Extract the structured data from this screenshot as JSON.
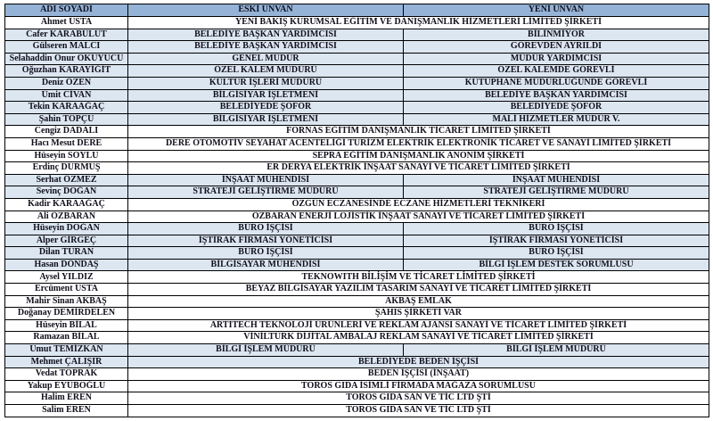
{
  "colors": {
    "header_bg": "#95b3d7",
    "shaded_row_bg": "#dce6f1",
    "plain_row_bg": "#ffffff",
    "border": "#000000",
    "text": "#10101c"
  },
  "table": {
    "columns": [
      "ADI SOYADI",
      "ESKİ UNVAN",
      "YENİ UNVAN"
    ],
    "rows": [
      {
        "name": "Ahmet USTA",
        "merged": "YENİ BAKIŞ KURUMSAL EĞİTİM VE DANIŞMANLIK HİZMETLERİ LİMİTED ŞİRKETİ",
        "shaded": false
      },
      {
        "name": "Cafer KARABULUT",
        "old_title": "BELEDİYE BAŞKAN YARDIMCISI",
        "new_title": "BİLİNMİYOR",
        "shaded": true
      },
      {
        "name": "Gülseren MALCI",
        "old_title": "BELEDİYE BAŞKAN YARDIMCISI",
        "new_title": "GÖREVDEN AYRILDI",
        "shaded": true
      },
      {
        "name": "Selahaddin Onur OKUYUCU",
        "old_title": "GENEL MÜDÜR",
        "new_title": "MÜDÜR YARDIMCISI",
        "shaded": true
      },
      {
        "name": "Oğuzhan KARAYİĞİT",
        "old_title": "ÖZEL KALEM MÜDÜRÜ",
        "new_title": "ÖZEL KALEMDE GÖREVLİ",
        "shaded": true
      },
      {
        "name": "Deniz ÖZEN",
        "old_title": "KÜLTÜR İŞLERİ MÜDÜRÜ",
        "new_title": "KÜTÜPHANE MÜDÜRLÜĞÜNDE GÖREVLİ",
        "shaded": true
      },
      {
        "name": "Ümit CİVAN",
        "old_title": "BİLGİSİYAR İŞLETMENİ",
        "new_title": "BELEDİYE BAŞKAN YARDIMCISI",
        "shaded": true
      },
      {
        "name": "Tekin KARAAĞAÇ",
        "old_title": "BELEDİYEDE ŞOFÖR",
        "new_title": "BELEDİYEDE ŞOFÖR",
        "shaded": true
      },
      {
        "name": "Şahin TOPÇU",
        "old_title": "BİLGİSİYAR İŞLETMENİ",
        "new_title": "MALİ HİZMETLER MÜDÜR V.",
        "shaded": true
      },
      {
        "name": "Cengiz DADALI",
        "merged": "FORNAS EĞİTİM DANIŞMANLIK TİCARET LİMİTED ŞİRKETİ",
        "shaded": false
      },
      {
        "name": "Hacı Mesut DERE",
        "merged": "DERE OTOMOTİV SEYAHAT ACENTELİĞİ TURİZM ELEKTRİK ELEKTRONİK TİCARET VE SANAYİ LİMİTED ŞİRKETİ",
        "shaded": false
      },
      {
        "name": "Hüseyin SOYLU",
        "merged": "SEPRA EĞİTİM DANIŞMANLIK ANONİM ŞİRKETİ",
        "shaded": false
      },
      {
        "name": "Erdinç DURMUŞ",
        "merged": "ER DERYA ELEKTRİK İNŞAAT SANAYİ VE TİCARET LİMİTED ŞİRKETİ",
        "shaded": false
      },
      {
        "name": "Serhat ÖZMEZ",
        "old_title": "İNŞAAT MÜHENDİSİ",
        "new_title": "İNŞAAT MÜHENDİSİ",
        "shaded": true
      },
      {
        "name": "Sevinç DOĞAN",
        "old_title": "STRATEJİ GELİŞTİRME MÜDÜRÜ",
        "new_title": "STRATEJİ GELİŞTİRME MÜDÜRÜ",
        "shaded": true
      },
      {
        "name": "Kadir KARAAĞAÇ",
        "merged": "ÖZGÜN ECZANESİNDE ECZANE HİZMETLERİ TEKNİKERİ",
        "shaded": false
      },
      {
        "name": "Ali ÖZBARAN",
        "merged": "ÖZBARAN ENERJİ LOJİSTİK İNŞAAT SANAYİ VE TİCARET LİMİTED ŞİRKETİ",
        "shaded": false
      },
      {
        "name": "Hüseyin DOĞAN",
        "old_title": "BÜRO İŞÇİSİ",
        "new_title": "BÜRO İŞÇİSİ",
        "shaded": true
      },
      {
        "name": "Alper GİRGEÇ",
        "old_title": "İŞTİRAK FİRMASI YÖNETİCİSİ",
        "new_title": "İŞTİRAK FİRMASI YÖNETİCİSİ",
        "shaded": true
      },
      {
        "name": "Dilan TURAN",
        "old_title": "BÜRO İŞÇİSİ",
        "new_title": "BÜRO İŞÇİSİ",
        "shaded": true
      },
      {
        "name": "Hasan DÖNDAŞ",
        "old_title": "BİLGİSAYAR MÜHENDİSİ",
        "new_title": "BİLGİ İŞLEM DESTEK SORUMLUSU",
        "shaded": true
      },
      {
        "name": "Aysel YILDIZ",
        "merged": "TEKNOWITH BİLİŞİM VE TİCARET LİMİTED ŞİRKETİ",
        "shaded": false
      },
      {
        "name": "Ercüment USTA",
        "merged": "BEYAZ BİLGİSAYAR YAZILIM TASARIM SANAYİ VE TİCARET LİMİTED ŞİRKETİ",
        "shaded": false
      },
      {
        "name": "Mahir Sinan AKBAŞ",
        "merged": "AKBAŞ EMLAK",
        "shaded": false
      },
      {
        "name": "Doğanay DEMİRDELEN",
        "merged": "ŞAHIS ŞİRKETİ VAR",
        "shaded": false
      },
      {
        "name": "Hüseyin BİLAL",
        "merged": "ARTITECH TEKNOLOJİ ÜRÜNLERİ VE REKLAM AJANSI SANAYİ VE TİCARET LİMİTED ŞİRKETİ",
        "shaded": false
      },
      {
        "name": "Ramazan BİLAL",
        "merged": "VİNİLTÜRK DİJİTAL AMBALAJ REKLAM SANAYİ VE TİCARET LİMİTED ŞİRKETİ",
        "shaded": false
      },
      {
        "name": "Umut TEMİZKAN",
        "old_title": "BİLGİ İŞLEM MÜDÜRÜ",
        "new_title": "BİLGİ İŞLEM MÜDÜRÜ",
        "shaded": true
      },
      {
        "name": "Mehmet ÇALIŞIR",
        "merged": "BELEDİYEDE BEDEN İŞÇİSİ",
        "shaded": true
      },
      {
        "name": "Vedat TOPRAK",
        "merged": "BEDEN İŞÇİSİ (İNŞAAT)",
        "shaded": false
      },
      {
        "name": "Yakup EYÜBOĞLU",
        "merged": "TOROS GIDA İSİMLİ FİRMADA MAĞAZA SORUMLUSU",
        "shaded": false
      },
      {
        "name": "Halim EREN",
        "merged": "TOROS GIDA SAN VE TİC LTD ŞTİ",
        "shaded": false
      },
      {
        "name": "Salim EREN",
        "merged": "TOROS GIDA SAN VE TİC LTD ŞTİ",
        "shaded": false
      }
    ]
  }
}
